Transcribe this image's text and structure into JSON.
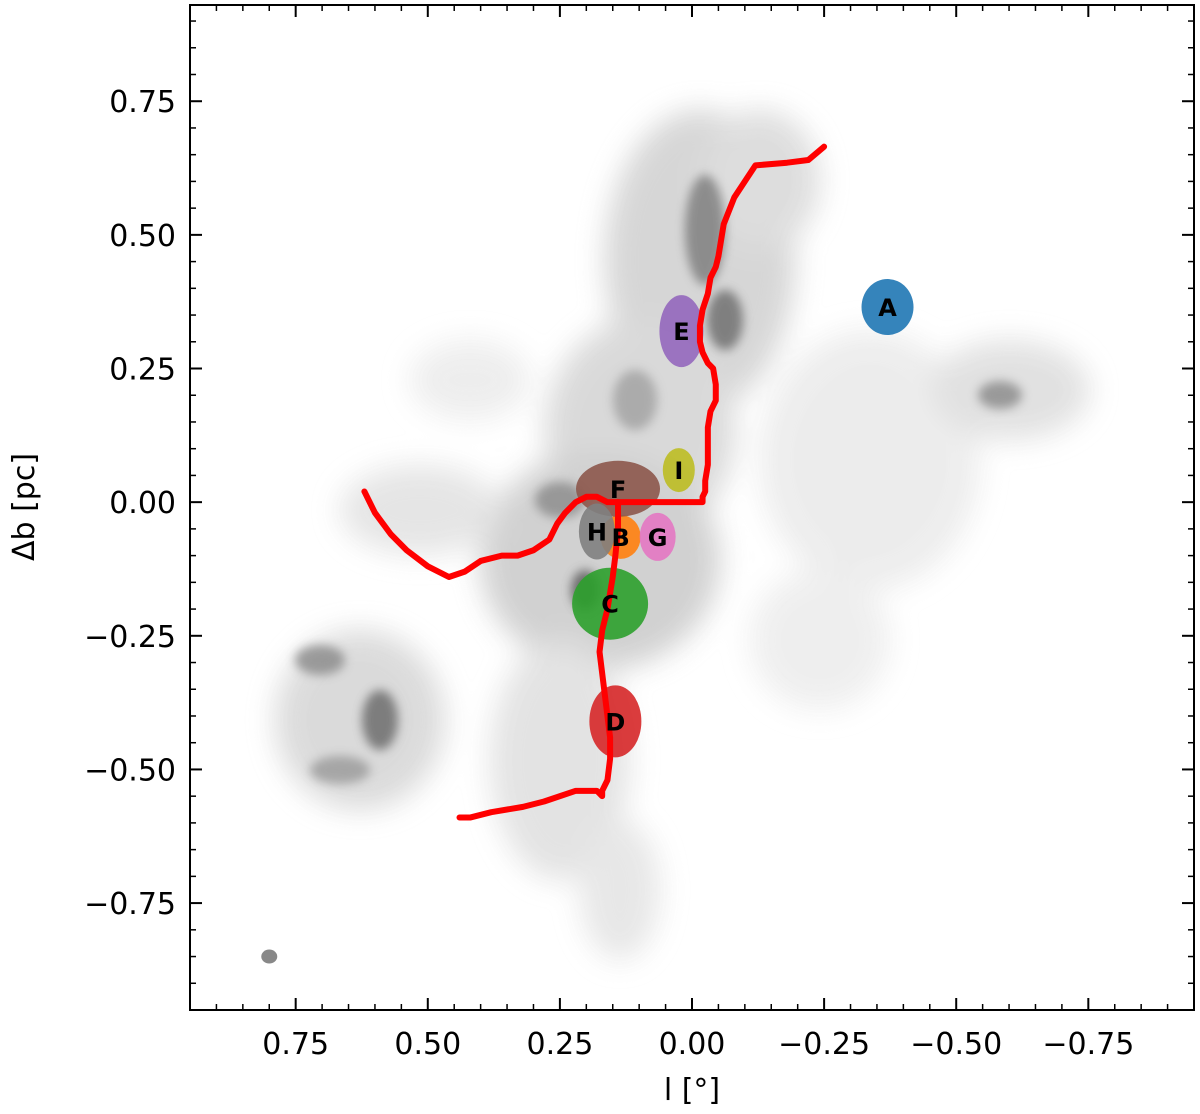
{
  "chart_data": {
    "type": "scatter",
    "title": "",
    "xlabel": "l [°]",
    "ylabel": "Δb [pc]",
    "xlim": [
      0.95,
      -0.95
    ],
    "ylim": [
      -0.95,
      0.93
    ],
    "x_ticks": [
      0.75,
      0.5,
      0.25,
      0.0,
      -0.25,
      -0.5,
      -0.75
    ],
    "x_tick_labels": [
      "0.75",
      "0.50",
      "0.25",
      "0.00",
      "−0.25",
      "−0.50",
      "−0.75"
    ],
    "y_ticks": [
      0.75,
      0.5,
      0.25,
      0.0,
      -0.25,
      -0.5,
      -0.75
    ],
    "y_tick_labels": [
      "0.75",
      "0.50",
      "0.25",
      "0.00",
      "−0.25",
      "−0.50",
      "−0.75"
    ],
    "grid": false,
    "background_map": "grayscale intensity",
    "beam": {
      "x": 0.8,
      "y": -0.85,
      "color": "#888888"
    },
    "clumps": [
      {
        "label": "A",
        "x": -0.37,
        "y": 0.365,
        "color": "#1f77b4"
      },
      {
        "label": "B",
        "x": 0.135,
        "y": -0.065,
        "color": "#ff7f0e"
      },
      {
        "label": "C",
        "x": 0.155,
        "y": -0.19,
        "color": "#2ca02c"
      },
      {
        "label": "D",
        "x": 0.145,
        "y": -0.41,
        "color": "#d62728"
      },
      {
        "label": "E",
        "x": 0.02,
        "y": 0.32,
        "color": "#9467bd"
      },
      {
        "label": "F",
        "x": 0.14,
        "y": 0.025,
        "color": "#8c564b"
      },
      {
        "label": "G",
        "x": 0.065,
        "y": -0.065,
        "color": "#e377c2"
      },
      {
        "label": "H",
        "x": 0.18,
        "y": -0.055,
        "color": "#7f7f7f"
      },
      {
        "label": "I",
        "x": 0.025,
        "y": 0.06,
        "color": "#bcbd22"
      }
    ],
    "filament": {
      "color": "#ff0000",
      "branches": [
        {
          "x": [
            -0.25,
            -0.22,
            -0.18,
            -0.12,
            -0.1,
            -0.08,
            -0.06,
            -0.055,
            -0.05,
            -0.045,
            -0.035,
            -0.03,
            -0.02,
            -0.015,
            -0.015,
            -0.02,
            -0.03,
            -0.04,
            -0.045,
            -0.045,
            -0.035,
            -0.03,
            -0.03,
            -0.03,
            -0.025,
            -0.025,
            -0.02,
            -0.02,
            -0.015,
            0.0,
            0.05,
            0.1,
            0.14
          ],
          "y": [
            0.665,
            0.64,
            0.635,
            0.63,
            0.6,
            0.57,
            0.52,
            0.49,
            0.46,
            0.44,
            0.42,
            0.39,
            0.36,
            0.33,
            0.3,
            0.28,
            0.26,
            0.25,
            0.22,
            0.19,
            0.17,
            0.14,
            0.1,
            0.07,
            0.04,
            0.02,
            0.01,
            0.0,
            0.0,
            0.0,
            0.0,
            0.0,
            0.0
          ]
        },
        {
          "x": [
            0.62,
            0.6,
            0.57,
            0.54,
            0.5,
            0.46,
            0.43,
            0.4,
            0.36,
            0.33,
            0.3,
            0.27,
            0.255,
            0.24,
            0.22,
            0.2,
            0.18,
            0.16,
            0.14
          ],
          "y": [
            0.02,
            -0.02,
            -0.06,
            -0.09,
            -0.12,
            -0.14,
            -0.13,
            -0.11,
            -0.1,
            -0.1,
            -0.09,
            -0.07,
            -0.04,
            -0.02,
            0.0,
            0.01,
            0.01,
            0.0,
            0.0
          ]
        },
        {
          "x": [
            0.14,
            0.14,
            0.145,
            0.15,
            0.155,
            0.16,
            0.17,
            0.175,
            0.17,
            0.165,
            0.16,
            0.155,
            0.155,
            0.16,
            0.17,
            0.17,
            0.18,
            0.22,
            0.28,
            0.32,
            0.38,
            0.42,
            0.44
          ],
          "y": [
            0.0,
            -0.05,
            -0.1,
            -0.14,
            -0.17,
            -0.2,
            -0.24,
            -0.28,
            -0.32,
            -0.36,
            -0.4,
            -0.44,
            -0.48,
            -0.52,
            -0.54,
            -0.55,
            -0.54,
            -0.54,
            -0.56,
            -0.57,
            -0.58,
            -0.59,
            -0.59
          ]
        }
      ]
    }
  }
}
